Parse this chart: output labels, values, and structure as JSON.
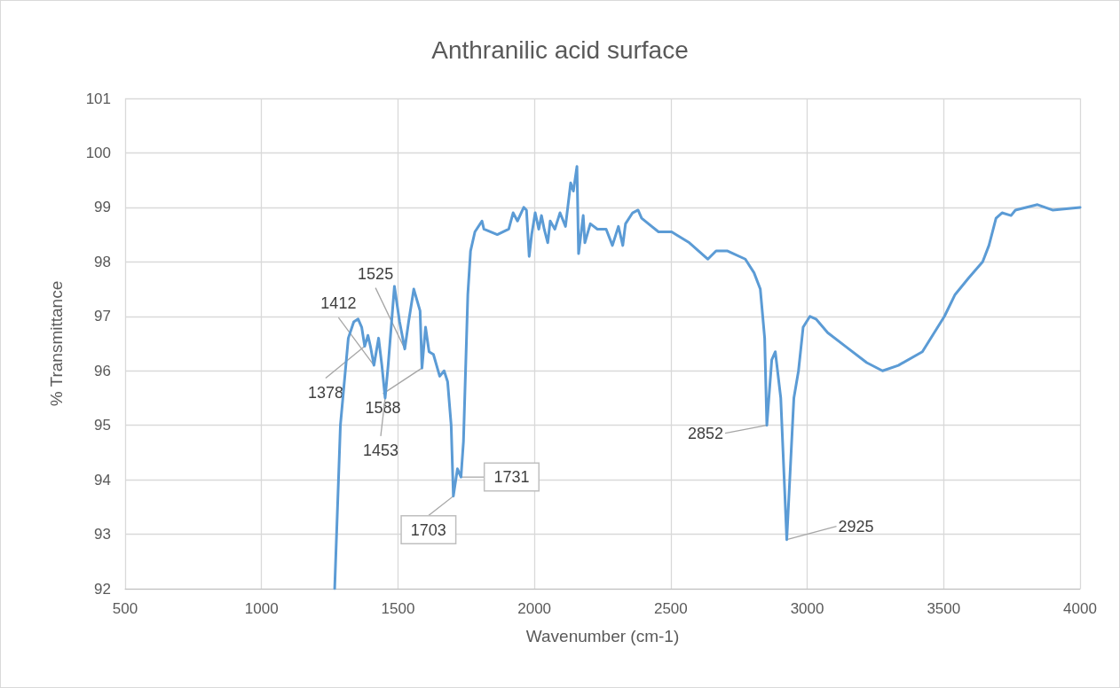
{
  "chart_data": {
    "type": "line",
    "title": "Anthranilic acid surface",
    "xlabel": "Wavenumber (cm-1)",
    "ylabel": "% Transmittance",
    "xlim": [
      500,
      4000
    ],
    "xticks": [
      500,
      1000,
      1500,
      2000,
      2500,
      3000,
      3500,
      4000
    ],
    "ylim": [
      92,
      101
    ],
    "yticks": [
      92,
      93,
      94,
      95,
      96,
      97,
      98,
      99,
      100,
      101
    ],
    "grid": true,
    "marker": "none",
    "line_style": "solid",
    "series": [
      {
        "color": "#5b9bd5",
        "x": [
          1268,
          1289,
          1318,
          1338,
          1354,
          1367,
          1378,
          1390,
          1399,
          1412,
          1429,
          1441,
          1453,
          1464,
          1487,
          1506,
          1525,
          1539,
          1558,
          1581,
          1588,
          1601,
          1614,
          1630,
          1653,
          1669,
          1682,
          1695,
          1703,
          1718,
          1731,
          1740,
          1756,
          1766,
          1782,
          1808,
          1815,
          1864,
          1906,
          1922,
          1938,
          1961,
          1971,
          1981,
          1990,
          2003,
          2016,
          2026,
          2036,
          2049,
          2058,
          2075,
          2094,
          2114,
          2133,
          2143,
          2156,
          2162,
          2179,
          2185,
          2205,
          2231,
          2263,
          2286,
          2308,
          2324,
          2334,
          2360,
          2380,
          2393,
          2455,
          2503,
          2568,
          2636,
          2666,
          2708,
          2773,
          2805,
          2828,
          2844,
          2852,
          2870,
          2883,
          2903,
          2925,
          2951,
          2968,
          2985,
          3010,
          3032,
          3075,
          3140,
          3218,
          3276,
          3334,
          3422,
          3503,
          3542,
          3591,
          3643,
          3666,
          3692,
          3714,
          3747,
          3763,
          3844,
          3899,
          4000
        ],
        "values": [
          92.0,
          95.0,
          96.6,
          96.9,
          96.95,
          96.8,
          96.45,
          96.65,
          96.45,
          96.1,
          96.6,
          96.1,
          95.5,
          96.1,
          97.55,
          96.9,
          96.4,
          96.9,
          97.5,
          97.1,
          96.05,
          96.8,
          96.35,
          96.3,
          95.9,
          96.0,
          95.8,
          95.0,
          93.7,
          94.2,
          94.05,
          94.7,
          97.4,
          98.2,
          98.55,
          98.75,
          98.6,
          98.5,
          98.6,
          98.9,
          98.75,
          99.0,
          98.95,
          98.1,
          98.5,
          98.9,
          98.6,
          98.85,
          98.6,
          98.35,
          98.75,
          98.6,
          98.9,
          98.65,
          99.45,
          99.3,
          99.75,
          98.15,
          98.85,
          98.35,
          98.7,
          98.6,
          98.6,
          98.3,
          98.65,
          98.3,
          98.7,
          98.9,
          98.95,
          98.8,
          98.55,
          98.55,
          98.35,
          98.05,
          98.2,
          98.2,
          98.05,
          97.8,
          97.5,
          96.6,
          95.0,
          96.2,
          96.35,
          95.5,
          92.9,
          95.5,
          96.0,
          96.8,
          97.0,
          96.95,
          96.7,
          96.45,
          96.15,
          96.0,
          96.1,
          96.35,
          97.0,
          97.4,
          97.7,
          98.0,
          98.3,
          98.8,
          98.9,
          98.85,
          98.95,
          99.05,
          98.95,
          99.0
        ]
      }
    ],
    "annotations": [
      {
        "text": "1378",
        "x": 1378,
        "y": 96.45
      },
      {
        "text": "1412",
        "x": 1412,
        "y": 96.1
      },
      {
        "text": "1525",
        "x": 1525,
        "y": 96.4
      },
      {
        "text": "1588",
        "x": 1588,
        "y": 96.05
      },
      {
        "text": "1453",
        "x": 1453,
        "y": 95.5
      },
      {
        "text": "1703",
        "x": 1703,
        "y": 93.7
      },
      {
        "text": "1731",
        "x": 1731,
        "y": 94.05
      },
      {
        "text": "2852",
        "x": 2852,
        "y": 95.0
      },
      {
        "text": "2925",
        "x": 2925,
        "y": 92.9
      }
    ]
  }
}
